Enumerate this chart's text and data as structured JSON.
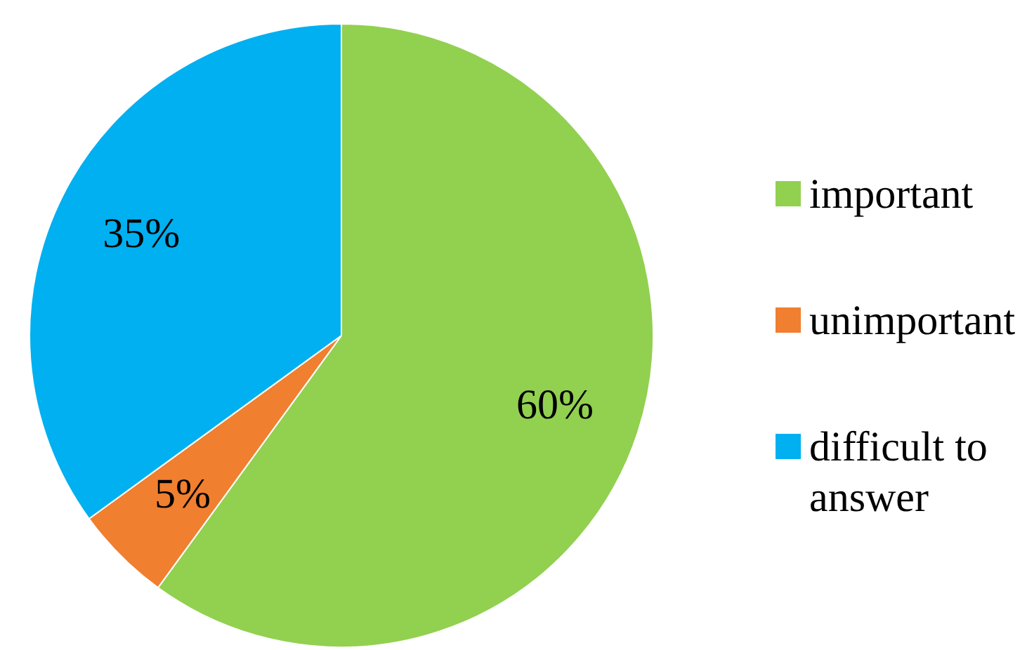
{
  "chart_data": {
    "type": "pie",
    "categories": [
      "important",
      "unimportant",
      "difficult to answer"
    ],
    "values": [
      60,
      5,
      35
    ],
    "colors": [
      "#92d050",
      "#f07f2f",
      "#00b0f0"
    ],
    "value_labels": [
      "60%",
      "5%",
      "35%"
    ],
    "legend": "right"
  }
}
